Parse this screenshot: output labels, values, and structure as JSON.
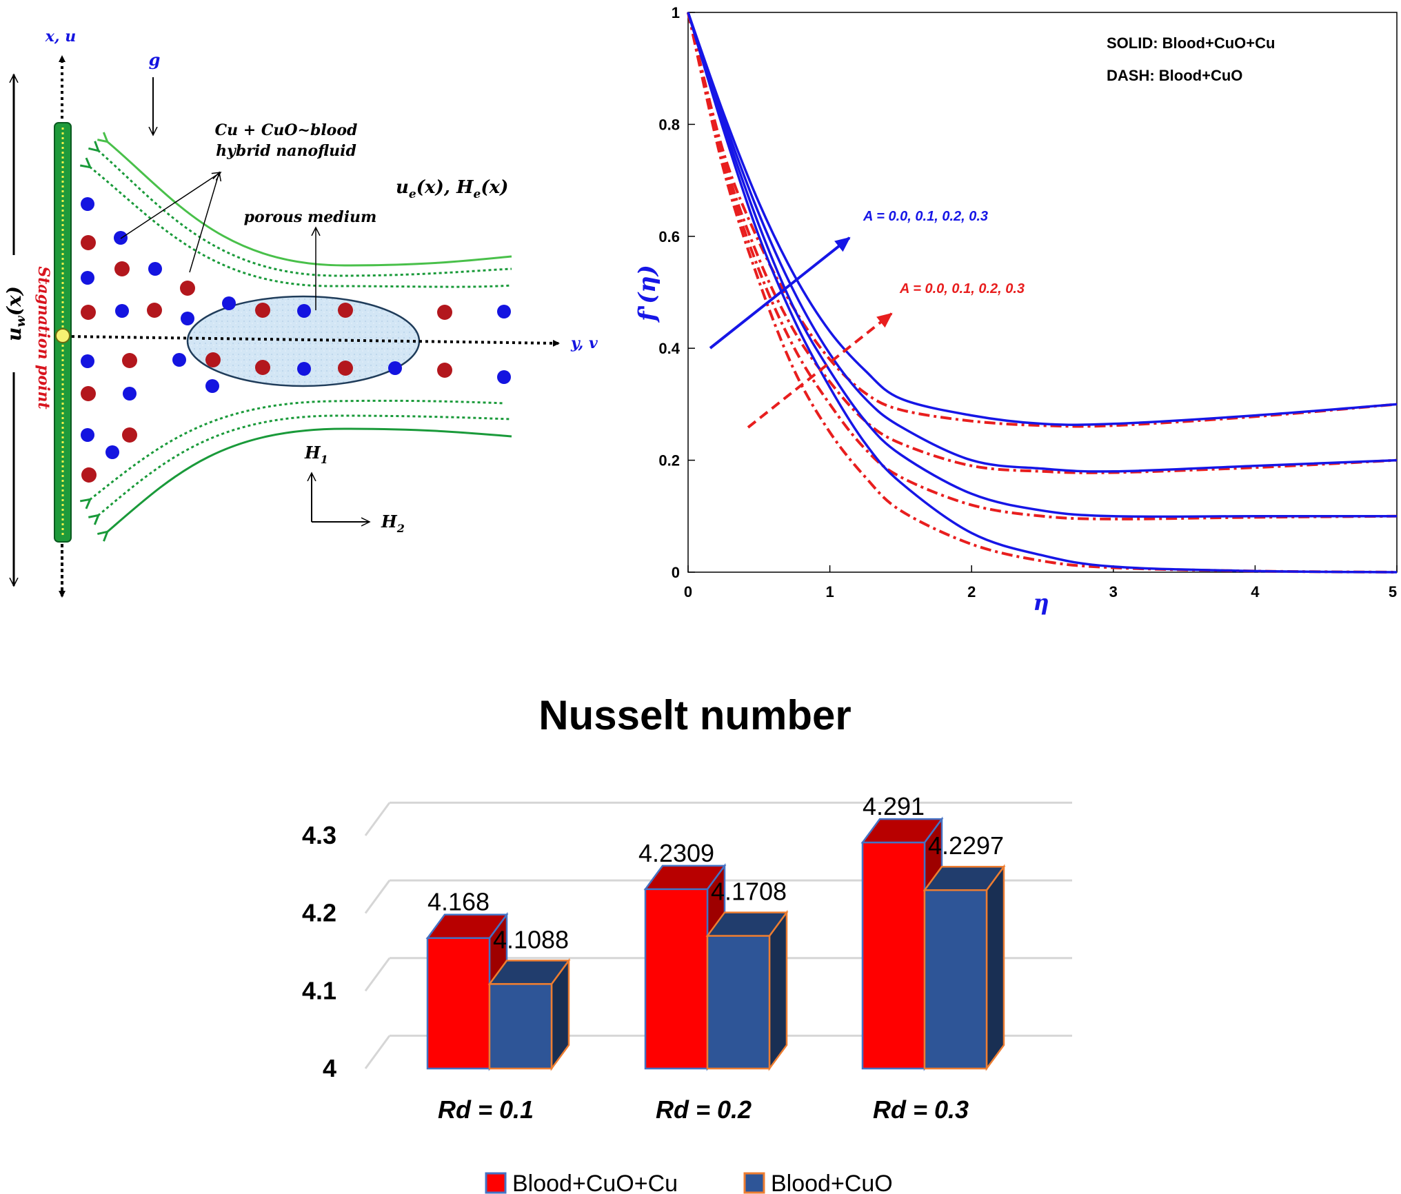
{
  "schematic": {
    "axis_x_label": "x, u",
    "axis_y_label": "y, v",
    "gravity_label": "g",
    "wall_velocity_label": "u_w(x)",
    "wall_velocity_main": "u",
    "wall_velocity_sub": "w",
    "wall_velocity_arg": "(x)",
    "stagnation_label": "Stagnation point",
    "fluid_label_line1": "Cu + CuO~blood",
    "fluid_label_line2": "hybrid nanofluid",
    "free_stream_label": "u_e(x), H_e(x)",
    "free_stream_u": "u",
    "free_stream_e1": "e",
    "free_stream_mid": "(x), H",
    "free_stream_e2": "e",
    "free_stream_end": "(x)",
    "porous_label": "porous medium",
    "field_h1_main": "H",
    "field_h1_sub": "1",
    "field_h2_main": "H",
    "field_h2_sub": "2",
    "colors": {
      "wall": "#1e9a3a",
      "streamline": "#49c04a",
      "particle_red": "#b3171d",
      "particle_blue": "#1414e0",
      "ellipse": "#cfe3f3"
    }
  },
  "velocity_chart": {
    "type": "line",
    "ylabel": "f'(η)",
    "xlabel": "η",
    "xlim": [
      0,
      5
    ],
    "ylim": [
      0,
      1
    ],
    "x_ticks": [
      "0",
      "1",
      "2",
      "3",
      "4",
      "5"
    ],
    "y_ticks": [
      "0",
      "0.2",
      "0.4",
      "0.6",
      "0.8",
      "1"
    ],
    "legend_line1": "SOLID: Blood+CuO+Cu",
    "legend_line2": "DASH: Blood+CuO",
    "annotation_blue": "A = 0.0, 0.1, 0.2, 0.3",
    "annotation_red": "A = 0.0, 0.1, 0.2, 0.3",
    "colors": {
      "solid": "#1616e6",
      "dash": "#e81e1e"
    }
  },
  "chart_data": [
    {
      "type": "line",
      "xlabel": "η",
      "ylabel": "f'(η)",
      "xlim": [
        0,
        5
      ],
      "ylim": [
        0,
        1
      ],
      "series": [
        {
          "name": "Blood+CuO+Cu",
          "A": 0.0,
          "style": "solid",
          "x": [
            0,
            0.25,
            0.5,
            0.75,
            1,
            1.25,
            1.5,
            2,
            2.5,
            3,
            4,
            5
          ],
          "y": [
            1,
            0.79,
            0.6,
            0.45,
            0.33,
            0.23,
            0.16,
            0.07,
            0.03,
            0.01,
            0.002,
            0.0
          ]
        },
        {
          "name": "Blood+CuO+Cu",
          "A": 0.1,
          "style": "solid",
          "x": [
            0,
            0.25,
            0.5,
            0.75,
            1,
            1.25,
            1.5,
            2,
            2.5,
            3,
            4,
            5
          ],
          "y": [
            1,
            0.8,
            0.62,
            0.47,
            0.36,
            0.27,
            0.21,
            0.14,
            0.11,
            0.1,
            0.1,
            0.1
          ]
        },
        {
          "name": "Blood+CuO+Cu",
          "A": 0.2,
          "style": "solid",
          "x": [
            0,
            0.25,
            0.5,
            0.75,
            1,
            1.25,
            1.5,
            2,
            2.5,
            3,
            4,
            5
          ],
          "y": [
            1,
            0.81,
            0.64,
            0.5,
            0.39,
            0.31,
            0.26,
            0.2,
            0.185,
            0.18,
            0.19,
            0.2
          ]
        },
        {
          "name": "Blood+CuO+Cu",
          "A": 0.3,
          "style": "solid",
          "x": [
            0,
            0.25,
            0.5,
            0.75,
            1,
            1.25,
            1.5,
            2,
            2.5,
            3,
            4,
            5
          ],
          "y": [
            1,
            0.82,
            0.66,
            0.53,
            0.43,
            0.36,
            0.31,
            0.28,
            0.265,
            0.265,
            0.28,
            0.3
          ]
        },
        {
          "name": "Blood+CuO",
          "A": 0.0,
          "style": "dash",
          "x": [
            0,
            0.25,
            0.5,
            0.75,
            1,
            1.25,
            1.5,
            2,
            2.5,
            3,
            4,
            5
          ],
          "y": [
            1,
            0.72,
            0.52,
            0.36,
            0.25,
            0.17,
            0.11,
            0.05,
            0.02,
            0.008,
            0.002,
            0.0
          ]
        },
        {
          "name": "Blood+CuO",
          "A": 0.1,
          "style": "dash",
          "x": [
            0,
            0.25,
            0.5,
            0.75,
            1,
            1.25,
            1.5,
            2,
            2.5,
            3,
            4,
            5
          ],
          "y": [
            1,
            0.73,
            0.54,
            0.4,
            0.3,
            0.22,
            0.17,
            0.12,
            0.1,
            0.095,
            0.098,
            0.1
          ]
        },
        {
          "name": "Blood+CuO",
          "A": 0.2,
          "style": "dash",
          "x": [
            0,
            0.25,
            0.5,
            0.75,
            1,
            1.25,
            1.5,
            2,
            2.5,
            3,
            4,
            5
          ],
          "y": [
            1,
            0.74,
            0.56,
            0.43,
            0.34,
            0.27,
            0.23,
            0.19,
            0.18,
            0.178,
            0.187,
            0.2
          ]
        },
        {
          "name": "Blood+CuO",
          "A": 0.3,
          "style": "dash",
          "x": [
            0,
            0.25,
            0.5,
            0.75,
            1,
            1.25,
            1.5,
            2,
            2.5,
            3,
            4,
            5
          ],
          "y": [
            1,
            0.75,
            0.59,
            0.47,
            0.38,
            0.32,
            0.29,
            0.27,
            0.262,
            0.262,
            0.278,
            0.3
          ]
        }
      ]
    },
    {
      "type": "bar",
      "title": "Nusselt number",
      "categories": [
        "Rd = 0.1",
        "Rd = 0.2",
        "Rd = 0.3"
      ],
      "ylim": [
        4,
        4.3
      ],
      "y_ticks": [
        "4",
        "4.1",
        "4.2",
        "4.3"
      ],
      "legend_position": "bottom",
      "series": [
        {
          "name": "Blood+CuO+Cu",
          "values": [
            4.168,
            4.2309,
            4.291
          ],
          "labels": [
            "4.168",
            "4.2309",
            "4.291"
          ],
          "color": "#ff0000"
        },
        {
          "name": "Blood+CuO",
          "values": [
            4.1088,
            4.1708,
            4.2297
          ],
          "labels": [
            "4.1088",
            "4.1708",
            "4.2297"
          ],
          "color": "#2e5597"
        }
      ]
    }
  ]
}
